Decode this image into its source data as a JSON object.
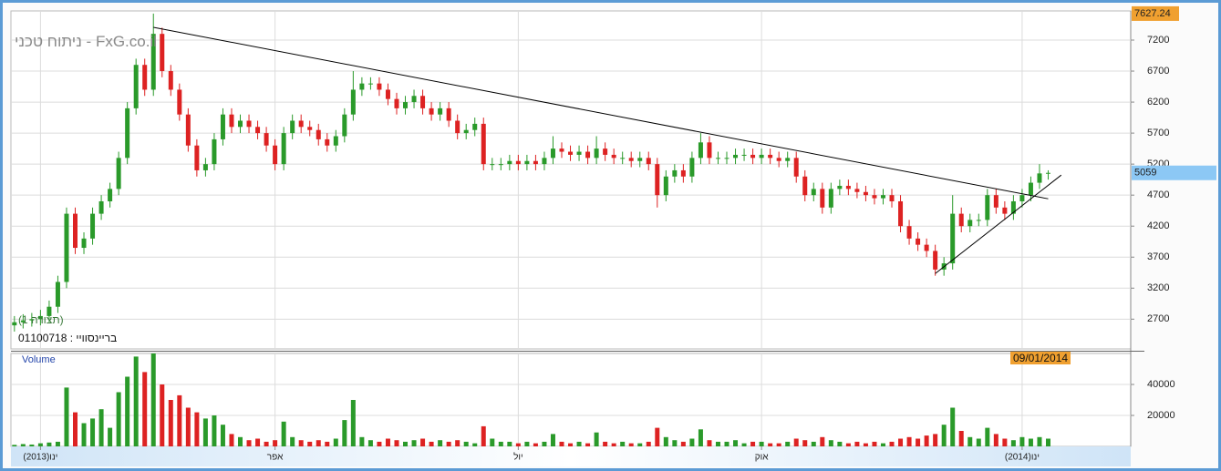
{
  "chart_data": {
    "type": "candlestick",
    "title": "FxG.co.il - ניתוח טכני",
    "study_label": "(תצורה 1)",
    "symbol_label": "בריינסוויי : 01100718",
    "volume_label": "Volume",
    "last_date": "09/01/2014",
    "up_color": "#2a9a2a",
    "down_color": "#dd2222",
    "grid": true,
    "xlim": [
      -0.4,
      128.5
    ],
    "xticks": [
      {
        "value": 3,
        "label": "ינו(2013)"
      },
      {
        "value": 30,
        "label": "אפר"
      },
      {
        "value": 58,
        "label": "יול"
      },
      {
        "value": 86,
        "label": "אוק"
      },
      {
        "value": 116,
        "label": "ינו(2014)"
      }
    ],
    "ylim": [
      2220,
      7670
    ],
    "yticks": [
      2700,
      3200,
      3700,
      4200,
      4700,
      5200,
      5700,
      6200,
      6700,
      7200
    ],
    "volume_ylim": [
      0,
      60000
    ],
    "volume_yticks": [
      20000,
      40000
    ],
    "open": [
      2600,
      2650,
      2680,
      2700,
      2750,
      2900,
      3300,
      4400,
      3850,
      4000,
      4400,
      4600,
      4800,
      5300,
      6100,
      6800,
      6400,
      7300,
      6700,
      6400,
      6000,
      5500,
      5100,
      5200,
      5600,
      6000,
      5800,
      5900,
      5800,
      5700,
      5500,
      5200,
      5700,
      5900,
      5800,
      5750,
      5600,
      5500,
      5650,
      6000,
      6400,
      6500,
      6500,
      6400,
      6250,
      6100,
      6200,
      6300,
      6100,
      6000,
      6100,
      5900,
      5700,
      5750,
      5850,
      5200,
      5200,
      5200,
      5250,
      5200,
      5250,
      5200,
      5300,
      5450,
      5400,
      5350,
      5400,
      5300,
      5450,
      5350,
      5300,
      5300,
      5250,
      5300,
      5200,
      4700,
      5000,
      5100,
      5000,
      5300,
      5550,
      5300,
      5300,
      5300,
      5350,
      5350,
      5300,
      5350,
      5300,
      5250,
      5300,
      5000,
      4700,
      4800,
      4500,
      4800,
      4850,
      4800,
      4750,
      4700,
      4650,
      4700,
      4600,
      4200,
      4000,
      3900,
      3800,
      3500,
      3600,
      4400,
      4200,
      4300,
      4300,
      4700,
      4500,
      4400,
      4600,
      4700,
      4900,
      5050
    ],
    "high": [
      2750,
      2780,
      2800,
      2850,
      3000,
      3400,
      4500,
      4500,
      4100,
      4500,
      4700,
      4900,
      5400,
      6200,
      6900,
      6900,
      7627.24,
      7400,
      6800,
      6500,
      6100,
      5600,
      5300,
      5700,
      6100,
      6100,
      6000,
      6000,
      5900,
      5800,
      5600,
      5800,
      6000,
      6000,
      5900,
      5850,
      5700,
      5750,
      6100,
      6700,
      6600,
      6600,
      6600,
      6500,
      6350,
      6300,
      6400,
      6400,
      6200,
      6200,
      6200,
      6000,
      5850,
      5950,
      5950,
      5300,
      5300,
      5350,
      5350,
      5350,
      5350,
      5400,
      5650,
      5550,
      5500,
      5500,
      5500,
      5650,
      5550,
      5450,
      5400,
      5400,
      5400,
      5400,
      5300,
      5100,
      5200,
      5200,
      5400,
      5700,
      5650,
      5400,
      5400,
      5450,
      5450,
      5450,
      5450,
      5450,
      5400,
      5400,
      5400,
      5100,
      4900,
      4900,
      4900,
      4950,
      4950,
      4900,
      4850,
      4800,
      4800,
      4800,
      4700,
      4300,
      4100,
      4000,
      3900,
      3700,
      4700,
      4500,
      4400,
      4400,
      4800,
      4800,
      4600,
      4700,
      4800,
      5000,
      5200,
      5100
    ],
    "low": [
      2500,
      2550,
      2580,
      2600,
      2650,
      2800,
      3200,
      3750,
      3750,
      3900,
      4300,
      4500,
      4700,
      5200,
      6000,
      6300,
      6300,
      6600,
      6300,
      5900,
      5400,
      5000,
      5000,
      5100,
      5500,
      5700,
      5700,
      5700,
      5600,
      5400,
      5100,
      5100,
      5600,
      5700,
      5650,
      5500,
      5400,
      5400,
      5550,
      5900,
      6300,
      6400,
      6300,
      6150,
      6000,
      6000,
      6100,
      6000,
      5900,
      5900,
      5800,
      5600,
      5600,
      5650,
      5100,
      5100,
      5100,
      5100,
      5100,
      5100,
      5100,
      5100,
      5200,
      5300,
      5250,
      5250,
      5200,
      5200,
      5250,
      5200,
      5200,
      5150,
      5150,
      5100,
      4500,
      4600,
      4900,
      4900,
      4900,
      5200,
      5200,
      5200,
      5200,
      5200,
      5250,
      5200,
      5200,
      5200,
      5150,
      5150,
      4900,
      4600,
      4600,
      4400,
      4400,
      4700,
      4700,
      4650,
      4600,
      4550,
      4550,
      4500,
      4100,
      3900,
      3800,
      3700,
      3400,
      3400,
      3500,
      4100,
      4100,
      4200,
      4200,
      4400,
      4300,
      4300,
      4500,
      4600,
      4800,
      4950
    ],
    "close": [
      2650,
      2680,
      2700,
      2750,
      2900,
      3300,
      4400,
      3850,
      4000,
      4400,
      4600,
      4800,
      5300,
      6100,
      6800,
      6400,
      7300,
      6700,
      6400,
      6000,
      5500,
      5100,
      5200,
      5600,
      6000,
      5800,
      5900,
      5800,
      5700,
      5500,
      5200,
      5700,
      5900,
      5800,
      5750,
      5600,
      5500,
      5650,
      6000,
      6400,
      6500,
      6500,
      6400,
      6250,
      6100,
      6200,
      6300,
      6100,
      6000,
      6100,
      5900,
      5700,
      5750,
      5850,
      5200,
      5200,
      5200,
      5250,
      5200,
      5250,
      5200,
      5300,
      5450,
      5400,
      5350,
      5400,
      5300,
      5450,
      5350,
      5300,
      5300,
      5250,
      5300,
      5200,
      4700,
      5000,
      5100,
      5000,
      5300,
      5550,
      5300,
      5300,
      5300,
      5350,
      5350,
      5300,
      5350,
      5300,
      5250,
      5300,
      5000,
      4700,
      4800,
      4500,
      4800,
      4850,
      4800,
      4750,
      4700,
      4650,
      4700,
      4600,
      4200,
      4000,
      3900,
      3800,
      3500,
      3600,
      4400,
      4200,
      4300,
      4300,
      4700,
      4500,
      4400,
      4600,
      4700,
      4900,
      5050,
      5059
    ],
    "volume": [
      1000,
      1500,
      1200,
      2000,
      2500,
      3000,
      38000,
      22000,
      15000,
      18000,
      24000,
      12000,
      35000,
      45000,
      58000,
      48000,
      60000,
      40000,
      30000,
      33000,
      25000,
      22000,
      18000,
      20000,
      14000,
      8000,
      6000,
      4000,
      5000,
      3000,
      4000,
      16000,
      6000,
      4000,
      3000,
      4000,
      3000,
      5000,
      17000,
      30000,
      6000,
      4000,
      3000,
      5000,
      4000,
      3000,
      4000,
      5000,
      3000,
      4000,
      3000,
      4000,
      3000,
      2000,
      13000,
      5000,
      3000,
      3000,
      2000,
      3000,
      2000,
      3000,
      8000,
      3000,
      2000,
      3000,
      2000,
      9000,
      3000,
      2000,
      3000,
      2000,
      2000,
      3000,
      12000,
      6000,
      4000,
      3000,
      5000,
      11000,
      4000,
      3000,
      3000,
      4000,
      2000,
      3000,
      3000,
      2000,
      2000,
      3000,
      5000,
      4000,
      3000,
      6000,
      4000,
      3000,
      2000,
      3000,
      2000,
      3000,
      2000,
      3000,
      5000,
      6000,
      5000,
      7000,
      8000,
      14000,
      25000,
      10000,
      6000,
      5000,
      12000,
      8000,
      5000,
      4000,
      6000,
      5000,
      6000,
      5000
    ],
    "trendlines": [
      {
        "x": [
          16,
          119
        ],
        "y": [
          7406,
          4641
        ]
      },
      {
        "x": [
          106,
          120.5
        ],
        "y": [
          3435,
          5023
        ]
      }
    ]
  }
}
